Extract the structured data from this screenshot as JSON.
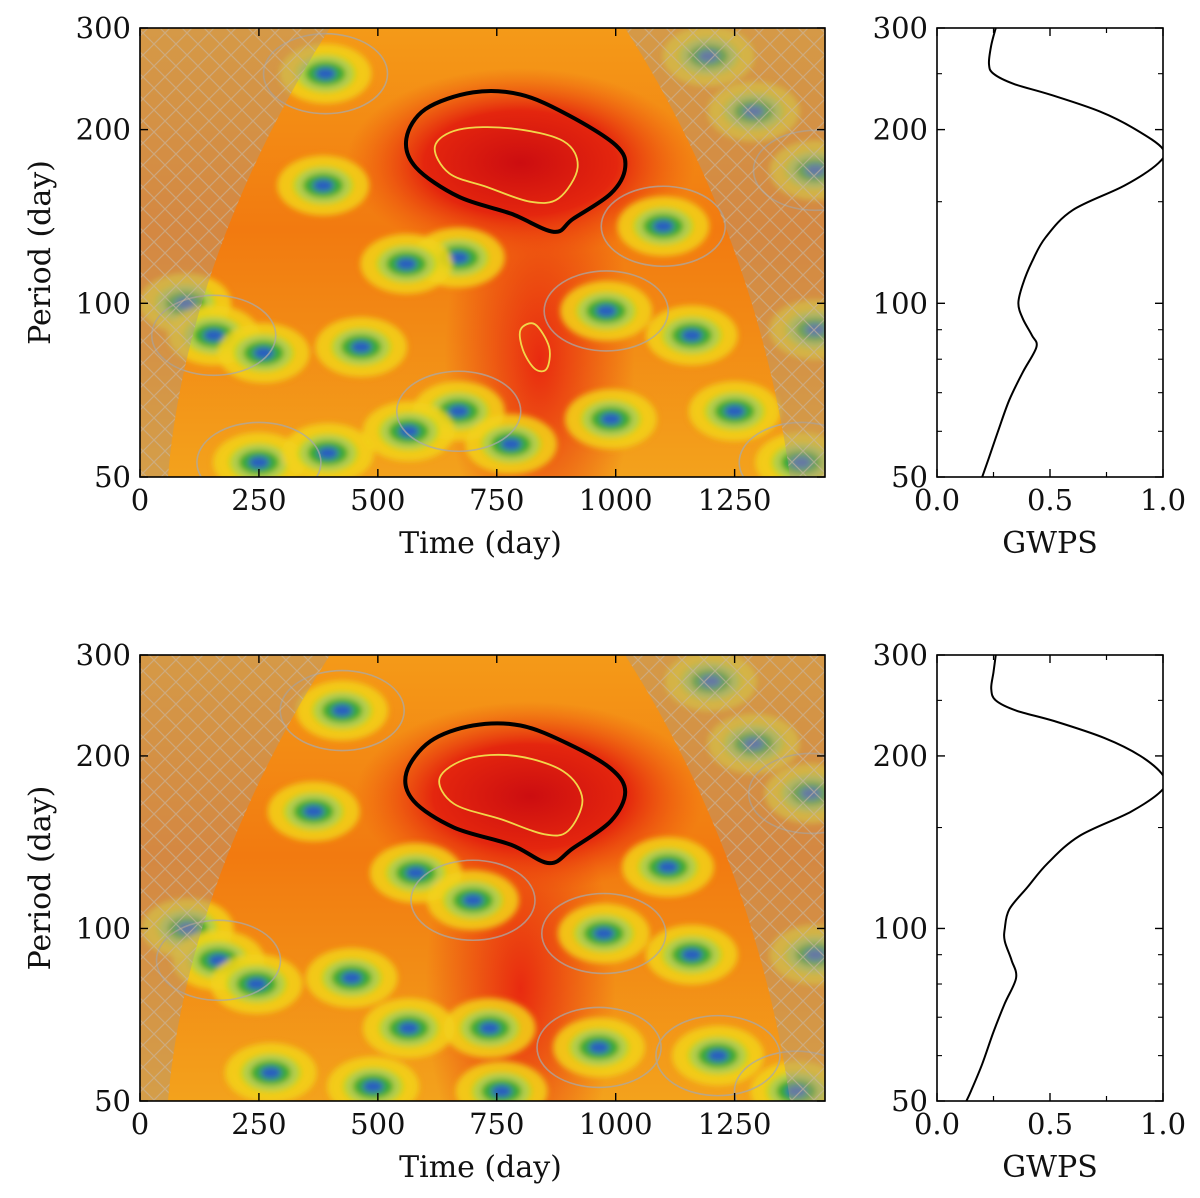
{
  "colors": {
    "background_field": "#f27a10",
    "coi_tint": "#b09a80",
    "contour_gray": "#a9a9a9",
    "significance_black": "#000000",
    "significance_yellow": "#f2d64a",
    "curve": "#000000"
  },
  "chart_data": [
    {
      "id": "wavelet-top",
      "type": "heatmap",
      "title": "",
      "xlabel": "Time (day)",
      "ylabel": "Period (day)",
      "xlim": [
        0,
        1440
      ],
      "ylim": [
        50,
        300
      ],
      "yscale": "log",
      "xticks": [
        0,
        250,
        500,
        750,
        1000,
        1250
      ],
      "yticks": [
        50,
        100,
        200,
        300
      ],
      "peak": {
        "time": 800,
        "period": 175,
        "power": 1.0
      },
      "secondary_peak": {
        "time": 840,
        "period": 82
      },
      "low_power_islands": [
        {
          "time": 390,
          "period": 250
        },
        {
          "time": 1195,
          "period": 268
        },
        {
          "time": 1290,
          "period": 215
        },
        {
          "time": 1420,
          "period": 170
        },
        {
          "time": 385,
          "period": 160
        },
        {
          "time": 670,
          "period": 120
        },
        {
          "time": 1100,
          "period": 136
        },
        {
          "time": 560,
          "period": 117
        },
        {
          "time": 95,
          "period": 100
        },
        {
          "time": 155,
          "period": 88
        },
        {
          "time": 260,
          "period": 82
        },
        {
          "time": 465,
          "period": 84
        },
        {
          "time": 980,
          "period": 97
        },
        {
          "time": 1160,
          "period": 88
        },
        {
          "time": 1420,
          "period": 90
        },
        {
          "time": 670,
          "period": 65
        },
        {
          "time": 565,
          "period": 60
        },
        {
          "time": 990,
          "period": 63
        },
        {
          "time": 250,
          "period": 53
        },
        {
          "time": 395,
          "period": 55
        },
        {
          "time": 1250,
          "period": 65
        },
        {
          "time": 1390,
          "period": 53
        },
        {
          "time": 780,
          "period": 57
        }
      ],
      "significance_contour": [
        [
          560,
          193
        ],
        [
          600,
          217
        ],
        [
          700,
          232
        ],
        [
          800,
          230
        ],
        [
          900,
          212
        ],
        [
          1000,
          188
        ],
        [
          1020,
          172
        ],
        [
          990,
          155
        ],
        [
          910,
          140
        ],
        [
          870,
          133
        ],
        [
          780,
          143
        ],
        [
          670,
          153
        ],
        [
          580,
          172
        ]
      ],
      "inner_contour": [
        [
          620,
          187
        ],
        [
          670,
          200
        ],
        [
          780,
          201
        ],
        [
          890,
          191
        ],
        [
          920,
          172
        ],
        [
          880,
          152
        ],
        [
          820,
          150
        ],
        [
          730,
          159
        ],
        [
          650,
          168
        ]
      ],
      "secondary_inner_contour": [
        [
          800,
          90
        ],
        [
          830,
          92
        ],
        [
          860,
          84
        ],
        [
          855,
          77
        ],
        [
          830,
          77
        ],
        [
          805,
          83
        ]
      ],
      "gwps": {
        "xlabel": "GWPS",
        "xlim": [
          0.0,
          1.0
        ],
        "xticks": [
          0.0,
          0.5,
          1.0
        ],
        "period": [
          300,
          280,
          260,
          250,
          240,
          230,
          215,
          200,
          185,
          175,
          160,
          145,
          130,
          118,
          108,
          100,
          94,
          88,
          84,
          76,
          68,
          60,
          54,
          50
        ],
        "power": [
          0.26,
          0.24,
          0.23,
          0.25,
          0.34,
          0.5,
          0.72,
          0.88,
          1.0,
          0.98,
          0.83,
          0.6,
          0.48,
          0.42,
          0.38,
          0.36,
          0.38,
          0.42,
          0.44,
          0.38,
          0.32,
          0.27,
          0.23,
          0.2
        ]
      }
    },
    {
      "id": "wavelet-bottom",
      "type": "heatmap",
      "title": "",
      "xlabel": "Time (day)",
      "ylabel": "Period (day)",
      "xlim": [
        0,
        1440
      ],
      "ylim": [
        50,
        300
      ],
      "yscale": "log",
      "xticks": [
        0,
        250,
        500,
        750,
        1000,
        1250
      ],
      "yticks": [
        50,
        100,
        200,
        300
      ],
      "peak": {
        "time": 820,
        "period": 170,
        "power": 1.0
      },
      "secondary_peak": {
        "time": 800,
        "period": 85
      },
      "low_power_islands": [
        {
          "time": 425,
          "period": 240
        },
        {
          "time": 1200,
          "period": 270
        },
        {
          "time": 1290,
          "period": 210
        },
        {
          "time": 1410,
          "period": 172
        },
        {
          "time": 365,
          "period": 160
        },
        {
          "time": 580,
          "period": 125
        },
        {
          "time": 700,
          "period": 112
        },
        {
          "time": 1110,
          "period": 128
        },
        {
          "time": 100,
          "period": 100
        },
        {
          "time": 165,
          "period": 88
        },
        {
          "time": 245,
          "period": 80
        },
        {
          "time": 445,
          "period": 82
        },
        {
          "time": 975,
          "period": 98
        },
        {
          "time": 1160,
          "period": 90
        },
        {
          "time": 1420,
          "period": 90
        },
        {
          "time": 1215,
          "period": 60
        },
        {
          "time": 565,
          "period": 67
        },
        {
          "time": 735,
          "period": 67
        },
        {
          "time": 965,
          "period": 62
        },
        {
          "time": 275,
          "period": 56
        },
        {
          "time": 490,
          "period": 53
        },
        {
          "time": 1380,
          "period": 52
        },
        {
          "time": 760,
          "period": 52
        }
      ],
      "significance_contour": [
        [
          560,
          187
        ],
        [
          610,
          212
        ],
        [
          700,
          226
        ],
        [
          800,
          226
        ],
        [
          900,
          210
        ],
        [
          990,
          190
        ],
        [
          1020,
          173
        ],
        [
          990,
          154
        ],
        [
          910,
          138
        ],
        [
          860,
          130
        ],
        [
          780,
          140
        ],
        [
          660,
          150
        ],
        [
          575,
          167
        ]
      ],
      "inner_contour": [
        [
          630,
          183
        ],
        [
          690,
          198
        ],
        [
          790,
          200
        ],
        [
          890,
          188
        ],
        [
          930,
          168
        ],
        [
          900,
          148
        ],
        [
          850,
          146
        ],
        [
          760,
          155
        ],
        [
          660,
          165
        ]
      ],
      "gwps": {
        "xlabel": "GWPS",
        "xlim": [
          0.0,
          1.0
        ],
        "xticks": [
          0.0,
          0.5,
          1.0
        ],
        "period": [
          300,
          280,
          262,
          250,
          240,
          230,
          215,
          200,
          185,
          175,
          160,
          145,
          130,
          118,
          108,
          100,
          95,
          88,
          82,
          74,
          66,
          58,
          52,
          50
        ],
        "power": [
          0.26,
          0.25,
          0.24,
          0.26,
          0.35,
          0.52,
          0.74,
          0.9,
          1.0,
          1.0,
          0.86,
          0.63,
          0.49,
          0.4,
          0.32,
          0.3,
          0.3,
          0.33,
          0.35,
          0.3,
          0.25,
          0.2,
          0.15,
          0.13
        ]
      }
    }
  ]
}
